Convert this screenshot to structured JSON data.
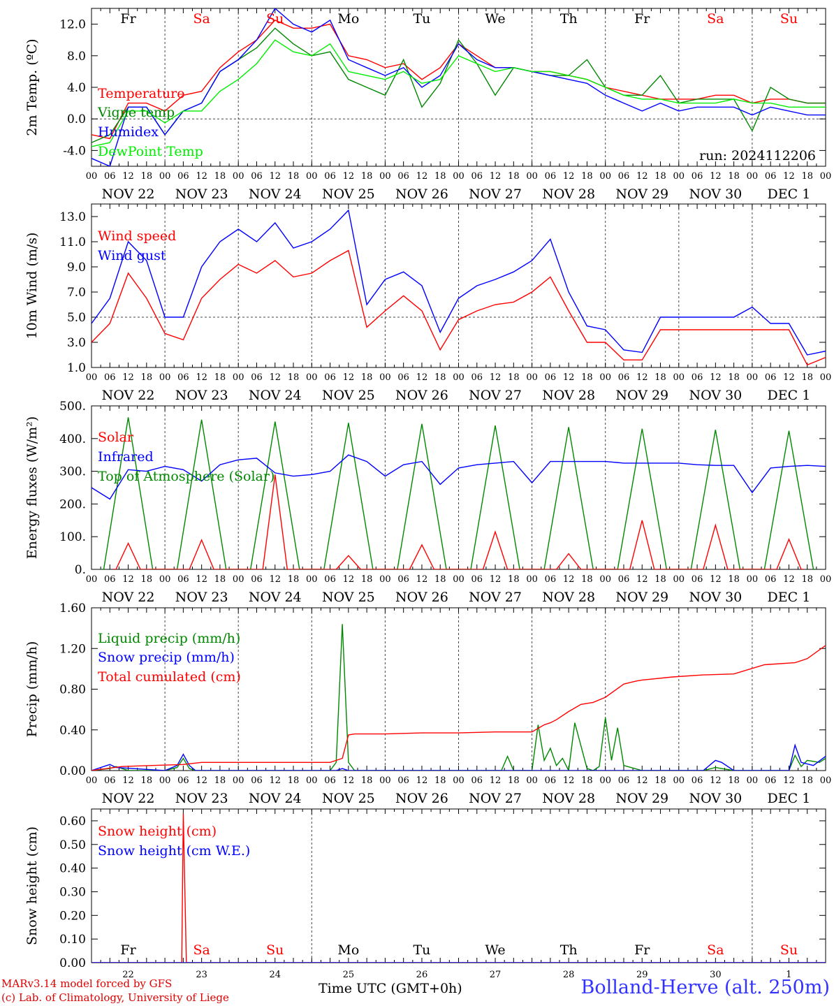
{
  "chart_data": [
    {
      "type": "line",
      "ylabel": "2m Temp. (ºC)",
      "ylim": [
        -6,
        14
      ],
      "yticks": [
        -4.0,
        0.0,
        4.0,
        8.0,
        12.0
      ],
      "ytick_labels": [
        "-4.0",
        "0.0",
        "4.0",
        "8.0",
        "12.0"
      ],
      "reference_line": 0,
      "annotation": "run: 2024112206",
      "legend": [
        "Temperature",
        "Vigne temp",
        "Humidex",
        "DewPoint Temp"
      ],
      "series": [
        {
          "name": "Temperature",
          "color": "#ff0000",
          "x": [
            0,
            6,
            12,
            18,
            24,
            30,
            36,
            42,
            48,
            54,
            60,
            66,
            72,
            78,
            84,
            90,
            96,
            102,
            108,
            114,
            120,
            126,
            132,
            138,
            144,
            150,
            156,
            162,
            168,
            174,
            180,
            186,
            192,
            198,
            204,
            210,
            216,
            222,
            228,
            234,
            240
          ],
          "y": [
            -2,
            -2.5,
            2,
            2,
            1,
            3,
            3.5,
            6.5,
            8.5,
            10,
            12.5,
            11.5,
            11.5,
            12,
            8,
            7.5,
            6.5,
            7,
            5,
            6.5,
            9.5,
            8,
            6.5,
            6.5,
            6,
            6,
            5.5,
            5,
            4,
            3.5,
            3,
            2.5,
            2.5,
            2.5,
            3,
            3,
            2,
            2.5,
            2.5,
            2,
            2
          ]
        },
        {
          "name": "Vigne temp",
          "color": "#008800",
          "x": [
            0,
            6,
            12,
            18,
            24,
            30,
            36,
            42,
            48,
            54,
            60,
            66,
            72,
            78,
            84,
            90,
            96,
            102,
            108,
            114,
            120,
            126,
            132,
            138,
            144,
            150,
            156,
            162,
            168,
            174,
            180,
            186,
            192,
            198,
            204,
            210,
            216,
            222,
            228,
            234,
            240
          ],
          "y": [
            -3,
            -2,
            1.5,
            1.5,
            -2,
            1,
            2,
            6,
            7.5,
            9,
            11.5,
            9.5,
            8,
            8.5,
            5,
            4,
            3,
            7.5,
            1.5,
            4.5,
            10,
            7,
            3,
            6.5,
            6,
            5.5,
            5.5,
            7.5,
            4,
            3,
            3,
            5.5,
            2,
            2.5,
            2.5,
            2.5,
            -1.5,
            4,
            2.5,
            2,
            2
          ]
        },
        {
          "name": "Humidex",
          "color": "#0000ff",
          "x": [
            0,
            6,
            12,
            18,
            24,
            30,
            36,
            42,
            48,
            54,
            60,
            66,
            72,
            78,
            84,
            90,
            96,
            102,
            108,
            114,
            120,
            126,
            132,
            138,
            144,
            150,
            156,
            162,
            168,
            174,
            180,
            186,
            192,
            198,
            204,
            210,
            216,
            222,
            228,
            234,
            240
          ],
          "y": [
            -5,
            -6,
            1.5,
            1.5,
            -2,
            1,
            2,
            6,
            7.5,
            10,
            14,
            12,
            11,
            12.5,
            7.5,
            6.5,
            5.5,
            6.5,
            4,
            5.5,
            9.5,
            7.5,
            6.5,
            6.5,
            6,
            5.5,
            5,
            4.5,
            3,
            2,
            1,
            2,
            1,
            1.5,
            1.5,
            1.5,
            0.5,
            1.5,
            1,
            0.5,
            0.5
          ]
        },
        {
          "name": "DewPoint Temp",
          "color": "#00ee00",
          "x": [
            0,
            6,
            12,
            18,
            24,
            30,
            36,
            42,
            48,
            54,
            60,
            66,
            72,
            78,
            84,
            90,
            96,
            102,
            108,
            114,
            120,
            126,
            132,
            138,
            144,
            150,
            156,
            162,
            168,
            174,
            180,
            186,
            192,
            198,
            204,
            210,
            216,
            222,
            228,
            234,
            240
          ],
          "y": [
            -3.5,
            -3,
            1,
            1,
            -0.5,
            1,
            1,
            3.5,
            5,
            7,
            10,
            8.5,
            8,
            9.5,
            6,
            5.5,
            5,
            6,
            4.5,
            5,
            8,
            7,
            6,
            6.5,
            6,
            6,
            5.5,
            5,
            4,
            3,
            2.5,
            2.5,
            2,
            2,
            2,
            2.5,
            2,
            2,
            1.5,
            1.5,
            1.5
          ]
        }
      ]
    },
    {
      "type": "line",
      "ylabel": "10m Wind (m/s)",
      "ylim": [
        1,
        14
      ],
      "yticks": [
        1.0,
        3.0,
        5.0,
        7.0,
        9.0,
        11.0,
        13.0
      ],
      "ytick_labels": [
        "1.0",
        "3.0",
        "5.0",
        "7.0",
        "9.0",
        "11.0",
        "13.0"
      ],
      "reference_line": 5,
      "legend": [
        "Wind speed",
        "Wind gust"
      ],
      "series": [
        {
          "name": "Wind speed",
          "color": "#ff0000",
          "x": [
            0,
            6,
            12,
            18,
            24,
            30,
            36,
            42,
            48,
            54,
            60,
            66,
            72,
            78,
            84,
            90,
            96,
            102,
            108,
            114,
            120,
            126,
            132,
            138,
            144,
            150,
            156,
            162,
            168,
            174,
            180,
            186,
            192,
            198,
            204,
            210,
            216,
            222,
            228,
            234,
            240
          ],
          "y": [
            3,
            4.5,
            8.5,
            6.5,
            3.7,
            3.2,
            6.5,
            8,
            9.2,
            8.5,
            9.5,
            8.2,
            8.5,
            9.5,
            10.3,
            4.2,
            5.5,
            6.7,
            5.5,
            2.4,
            4.8,
            5.5,
            6,
            6.2,
            7,
            8.2,
            5.5,
            3,
            3,
            1.6,
            1.6,
            4,
            4,
            4,
            4,
            4,
            4,
            4,
            4,
            1.2,
            1.8
          ]
        },
        {
          "name": "Wind gust",
          "color": "#0000ff",
          "x": [
            0,
            6,
            12,
            18,
            24,
            30,
            36,
            42,
            48,
            54,
            60,
            66,
            72,
            78,
            84,
            90,
            96,
            102,
            108,
            114,
            120,
            126,
            132,
            138,
            144,
            150,
            156,
            162,
            168,
            174,
            180,
            186,
            192,
            198,
            204,
            210,
            216,
            222,
            228,
            234,
            240
          ],
          "y": [
            4.5,
            6.5,
            11,
            9.5,
            5,
            5,
            9,
            11,
            12,
            11,
            12.5,
            10.5,
            11,
            12,
            13.5,
            6,
            8,
            8.6,
            7.5,
            3.8,
            6.5,
            7.5,
            8,
            8.6,
            9.5,
            11.2,
            7,
            4.3,
            4,
            2.4,
            2.2,
            5,
            5,
            5,
            5,
            5,
            5.8,
            4.5,
            4.5,
            2,
            2.3
          ]
        }
      ]
    },
    {
      "type": "line",
      "ylabel": "Energy fluxes (W/m²)",
      "ylim": [
        0,
        500
      ],
      "yticks": [
        0,
        100,
        200,
        300,
        400,
        500
      ],
      "ytick_labels": [
        "0.",
        "100.",
        "200.",
        "300.",
        "400.",
        "500."
      ],
      "legend": [
        "Solar",
        "Infrared",
        "Top of Atmosphere (Solar)"
      ],
      "series": [
        {
          "name": "Top of Atmosphere (Solar)",
          "color": "#008800",
          "peaks": [
            465,
            458,
            452,
            448,
            445,
            440,
            435,
            430,
            427,
            424
          ]
        },
        {
          "name": "Solar",
          "color": "#ff0000",
          "peaks": [
            80,
            90,
            290,
            42,
            75,
            115,
            48,
            150,
            135,
            92
          ]
        },
        {
          "name": "Infrared",
          "color": "#0000ff",
          "x": [
            0,
            6,
            12,
            18,
            24,
            30,
            36,
            42,
            48,
            54,
            60,
            66,
            72,
            78,
            84,
            90,
            96,
            102,
            108,
            114,
            120,
            126,
            132,
            138,
            144,
            150,
            156,
            162,
            168,
            174,
            180,
            186,
            192,
            198,
            204,
            210,
            216,
            222,
            228,
            234,
            240
          ],
          "y": [
            250,
            215,
            305,
            300,
            315,
            305,
            270,
            320,
            335,
            340,
            295,
            285,
            290,
            300,
            350,
            330,
            285,
            320,
            330,
            260,
            310,
            320,
            325,
            330,
            265,
            330,
            330,
            330,
            330,
            325,
            325,
            325,
            325,
            320,
            318,
            318,
            235,
            310,
            315,
            318,
            315
          ]
        }
      ]
    },
    {
      "type": "line",
      "ylabel": "Precip (mm/h)",
      "ylim": [
        0,
        1.6
      ],
      "yticks": [
        0.0,
        0.4,
        0.8,
        1.2,
        1.6
      ],
      "ytick_labels": [
        "0.00",
        "0.40",
        "0.80",
        "1.20",
        "1.60"
      ],
      "legend": [
        "Liquid precip (mm/h)",
        "Snow precip (mm/h)",
        "Total cumulated (cm)"
      ],
      "series": [
        {
          "name": "Liquid precip (mm/h)",
          "color": "#008800",
          "x": [
            0,
            6,
            8,
            12,
            24,
            28,
            30,
            32,
            34,
            48,
            78,
            80,
            82,
            84,
            86,
            88,
            90,
            120,
            134,
            136,
            138,
            140,
            144,
            146,
            148,
            150,
            152,
            154,
            156,
            158,
            162,
            164,
            166,
            168,
            170,
            172,
            174,
            180,
            186,
            200,
            204,
            210,
            216,
            228,
            230,
            232,
            234,
            238,
            240
          ],
          "y": [
            0,
            0.02,
            0.04,
            0,
            0,
            0.03,
            0.12,
            0.02,
            0,
            0,
            0,
            0.08,
            1.44,
            0.08,
            0,
            0,
            0,
            0,
            0,
            0.14,
            0,
            0,
            0,
            0.45,
            0.1,
            0.22,
            0.05,
            0.12,
            0,
            0.47,
            0.02,
            0,
            0.04,
            0.52,
            0.1,
            0.42,
            0.05,
            0,
            0,
            0,
            0.03,
            0,
            0,
            0,
            0.15,
            0.04,
            0.1,
            0.08,
            0.12
          ]
        },
        {
          "name": "Snow precip (mm/h)",
          "color": "#0000ff",
          "x": [
            0,
            4,
            6,
            8,
            24,
            28,
            30,
            32,
            34,
            48,
            80,
            82,
            84,
            200,
            204,
            206,
            210,
            228,
            230,
            232,
            236,
            240
          ],
          "y": [
            0,
            0.04,
            0.06,
            0.03,
            0,
            0.05,
            0.16,
            0.05,
            0,
            0,
            0,
            0.02,
            0,
            0,
            0.1,
            0.08,
            0,
            0,
            0.25,
            0.08,
            0.05,
            0.14
          ]
        },
        {
          "name": "Total cumulated (cm)",
          "color": "#ff0000",
          "x": [
            0,
            10,
            20,
            30,
            36,
            48,
            60,
            72,
            78,
            82,
            84,
            86,
            96,
            108,
            120,
            132,
            144,
            148,
            150,
            152,
            156,
            160,
            164,
            168,
            174,
            178,
            180,
            190,
            200,
            210,
            220,
            230,
            234,
            240
          ],
          "y": [
            0,
            0.04,
            0.05,
            0.06,
            0.08,
            0.08,
            0.08,
            0.08,
            0.08,
            0.12,
            0.35,
            0.36,
            0.36,
            0.37,
            0.37,
            0.38,
            0.38,
            0.45,
            0.47,
            0.5,
            0.58,
            0.65,
            0.67,
            0.72,
            0.85,
            0.88,
            0.89,
            0.92,
            0.94,
            0.95,
            1.04,
            1.06,
            1.1,
            1.23
          ]
        }
      ]
    },
    {
      "type": "line",
      "ylabel": "Snow height (cm)",
      "ylim": [
        0,
        0.65
      ],
      "yticks": [
        0.0,
        0.1,
        0.2,
        0.3,
        0.4,
        0.5,
        0.6
      ],
      "ytick_labels": [
        "0.00",
        "0.10",
        "0.20",
        "0.30",
        "0.40",
        "0.50",
        "0.60"
      ],
      "legend": [
        "Snow height (cm)",
        "Snow height (cm W.E.)"
      ],
      "series": [
        {
          "name": "Snow height (cm)",
          "color": "#ff0000",
          "x": [
            0,
            29.5,
            30,
            31,
            240
          ],
          "y": [
            0,
            0,
            0.63,
            0,
            0
          ]
        },
        {
          "name": "Snow height (cm W.E.)",
          "color": "#0000ff",
          "x": [
            0,
            240
          ],
          "y": [
            0,
            0
          ]
        }
      ],
      "day_numbers": [
        "22",
        "23",
        "24",
        "25",
        "26",
        "27",
        "28",
        "29",
        "30",
        "1"
      ]
    }
  ],
  "axes": {
    "hour_ticks": [
      "00",
      "06",
      "12",
      "18"
    ],
    "final_tick": "00",
    "dates": [
      "NOV 22",
      "NOV 23",
      "NOV 24",
      "NOV 25",
      "NOV 26",
      "NOV 27",
      "NOV 28",
      "NOV 29",
      "NOV 30",
      "DEC  1"
    ],
    "weekdays": [
      {
        "label": "Fr",
        "weekend": false
      },
      {
        "label": "Sa",
        "weekend": true
      },
      {
        "label": "Su",
        "weekend": true
      },
      {
        "label": "Mo",
        "weekend": false
      },
      {
        "label": "Tu",
        "weekend": false
      },
      {
        "label": "We",
        "weekend": false
      },
      {
        "label": "Th",
        "weekend": false
      },
      {
        "label": "Fr",
        "weekend": false
      },
      {
        "label": "Sa",
        "weekend": true
      },
      {
        "label": "Su",
        "weekend": true
      }
    ],
    "xlabel": "Time UTC (GMT+0h)"
  },
  "footer": {
    "model_line": "MARv3.14 model forced by GFS",
    "credit_line": "(c) Lab. of Climatology, University of Liege",
    "station": "Bolland-Herve (alt. 250m)"
  },
  "colors": {
    "weekday": "#000000",
    "weekend": "#ff0000"
  }
}
